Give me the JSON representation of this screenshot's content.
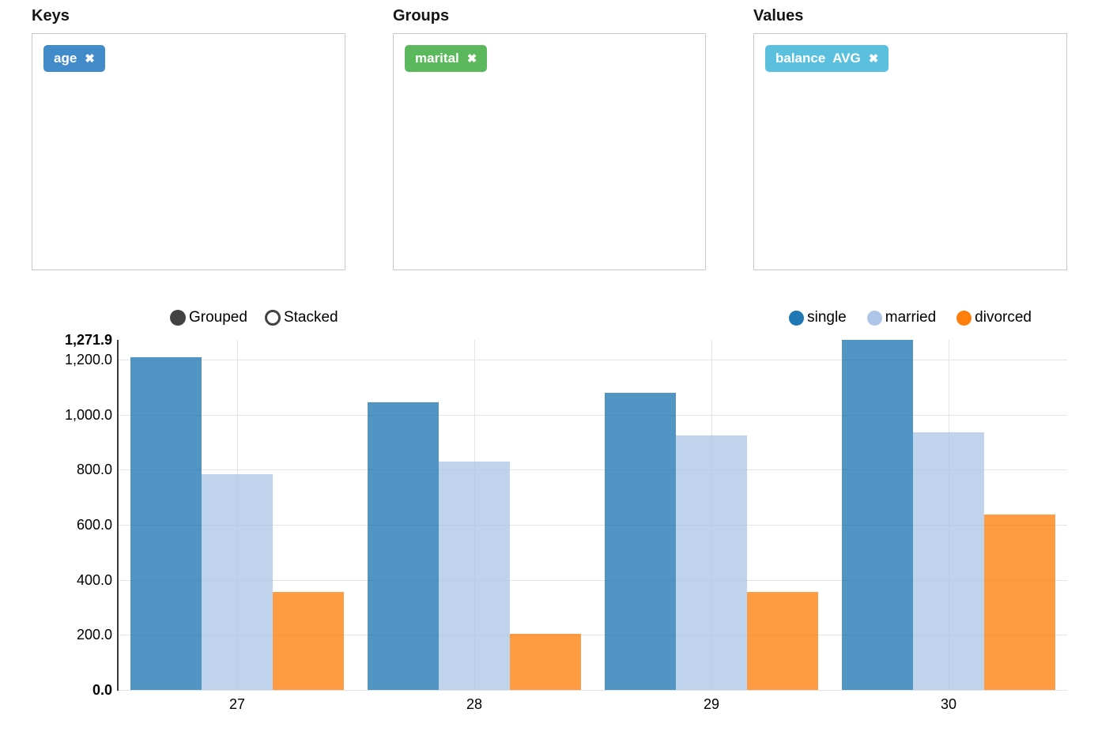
{
  "panels": [
    {
      "label": "Keys",
      "tags": [
        {
          "label": "age",
          "color": "#428bca",
          "remove_icon": "✖"
        }
      ]
    },
    {
      "label": "Groups",
      "tags": [
        {
          "label": "marital",
          "color": "#5cb85c",
          "remove_icon": "✖"
        }
      ]
    },
    {
      "label": "Values",
      "tags": [
        {
          "label": "balance  AVG",
          "color": "#5bc0de",
          "remove_icon": "✖"
        }
      ]
    }
  ],
  "chart_controls": {
    "options": [
      {
        "label": "Grouped",
        "selected": true
      },
      {
        "label": "Stacked",
        "selected": false
      }
    ],
    "dot_color": "#424242"
  },
  "chart_data": {
    "type": "bar",
    "mode": "grouped",
    "categories": [
      "27",
      "28",
      "29",
      "30"
    ],
    "series": [
      {
        "name": "single",
        "color": "#1f77b4",
        "values": [
          1210,
          1045,
          1080,
          1271.9
        ]
      },
      {
        "name": "married",
        "color": "#aec7e8",
        "values": [
          785,
          830,
          925,
          935
        ]
      },
      {
        "name": "divorced",
        "color": "#ff7f0e",
        "values": [
          355,
          204,
          355,
          637
        ]
      }
    ],
    "ylim": [
      0,
      1271.9
    ],
    "yticks": [
      {
        "v": 0,
        "label": "0.0",
        "bold": true,
        "grid": true
      },
      {
        "v": 200,
        "label": "200.0",
        "bold": false,
        "grid": true
      },
      {
        "v": 400,
        "label": "400.0",
        "bold": false,
        "grid": true
      },
      {
        "v": 600,
        "label": "600.0",
        "bold": false,
        "grid": true
      },
      {
        "v": 800,
        "label": "800.0",
        "bold": false,
        "grid": true
      },
      {
        "v": 1000,
        "label": "1,000.0",
        "bold": false,
        "grid": true
      },
      {
        "v": 1200,
        "label": "1,200.0",
        "bold": false,
        "grid": true
      },
      {
        "v": 1271.9,
        "label": "1,271.9",
        "bold": true,
        "grid": false
      }
    ],
    "grid": true,
    "legend_position": "top-right",
    "bar_opacity": 0.78,
    "group_spacing": 0.1
  }
}
